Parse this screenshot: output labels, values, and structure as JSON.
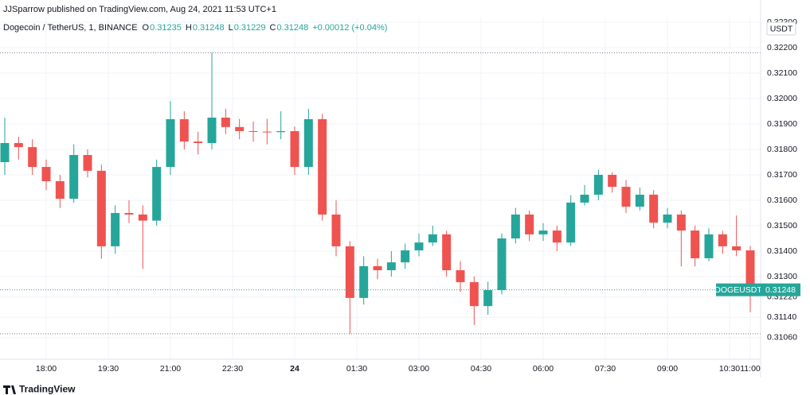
{
  "header": {
    "published": "JJSparrow published on TradingView.com, Aug 24, 2021 11:53 UTC+1"
  },
  "legend": {
    "symbol": "Dogecoin / TetherUS, 1, BINANCE",
    "o_label": "O",
    "o": "0.31235",
    "h_label": "H",
    "h": "0.31248",
    "l_label": "L",
    "l": "0.31229",
    "c_label": "C",
    "c": "0.31248",
    "change": "+0.00012 (+0.04%)"
  },
  "price_tag": {
    "symbol": "DOGEUSDT",
    "value": "0.31248"
  },
  "currency": "USDT",
  "footer": {
    "brand": "TradingView"
  },
  "chart_data": {
    "type": "candlestick",
    "up_color": "#26a69a",
    "down_color": "#ef5350",
    "grid": true,
    "x": [
      "17:00",
      "17:20",
      "17:40",
      "18:00",
      "18:20",
      "18:40",
      "19:00",
      "19:20",
      "19:40",
      "20:00",
      "20:20",
      "20:40",
      "21:00",
      "21:20",
      "21:40",
      "22:00",
      "22:20",
      "22:40",
      "23:00",
      "23:20",
      "23:40",
      "00:00",
      "00:20",
      "00:40",
      "01:00",
      "01:20",
      "01:40",
      "02:00",
      "02:20",
      "02:40",
      "03:00",
      "03:20",
      "03:40",
      "04:00",
      "04:20",
      "04:40",
      "05:00",
      "05:20",
      "05:40",
      "06:00",
      "06:20",
      "06:40",
      "07:00",
      "07:20",
      "07:40",
      "08:00",
      "08:20",
      "08:40",
      "09:00",
      "09:20",
      "09:40",
      "10:00",
      "10:20",
      "10:40",
      "11:00"
    ],
    "open": [
      0.3175,
      0.31825,
      0.31809,
      0.31731,
      0.31675,
      0.31606,
      0.31778,
      0.31716,
      0.31419,
      0.3155,
      0.31544,
      0.3152,
      0.31731,
      0.31919,
      0.31831,
      0.31825,
      0.31925,
      0.31888,
      0.31872,
      0.3187,
      0.31868,
      0.31872,
      0.31731,
      0.31919,
      0.31544,
      0.31419,
      0.31216,
      0.31341,
      0.31325,
      0.31356,
      0.31403,
      0.31434,
      0.31466,
      0.31325,
      0.31278,
      0.31184,
      0.31247,
      0.3145,
      0.31544,
      0.31466,
      0.31481,
      0.31434,
      0.31591,
      0.31622,
      0.317,
      0.31653,
      0.31575,
      0.31622,
      0.31512,
      0.31544,
      0.31481,
      0.31372,
      0.31466,
      0.31419,
      0.31403
    ],
    "high": [
      0.31925,
      0.3185,
      0.3184,
      0.3176,
      0.317,
      0.3182,
      0.318,
      0.3174,
      0.3158,
      0.316,
      0.3158,
      0.3176,
      0.3199,
      0.3195,
      0.3187,
      0.3218,
      0.3196,
      0.3192,
      0.3191,
      0.3192,
      0.3195,
      0.3189,
      0.3196,
      0.3194,
      0.316,
      0.3144,
      0.3138,
      0.3137,
      0.314,
      0.3143,
      0.3147,
      0.315,
      0.3148,
      0.3136,
      0.313,
      0.3128,
      0.3147,
      0.3157,
      0.3156,
      0.3151,
      0.315,
      0.3162,
      0.3166,
      0.3172,
      0.3171,
      0.3168,
      0.3165,
      0.3164,
      0.3157,
      0.3156,
      0.315,
      0.3149,
      0.3148,
      0.3154,
      0.3142
    ],
    "low": [
      0.317,
      0.3176,
      0.317,
      0.3164,
      0.3157,
      0.3159,
      0.3169,
      0.3137,
      0.3139,
      0.3151,
      0.3133,
      0.315,
      0.317,
      0.318,
      0.3178,
      0.318,
      0.3186,
      0.3184,
      0.3183,
      0.3182,
      0.3184,
      0.317,
      0.317,
      0.3152,
      0.3138,
      0.31075,
      0.3119,
      0.3129,
      0.313,
      0.3133,
      0.3138,
      0.3142,
      0.313,
      0.3124,
      0.3111,
      0.3115,
      0.3123,
      0.3143,
      0.3144,
      0.3144,
      0.314,
      0.3142,
      0.3158,
      0.316,
      0.3163,
      0.3155,
      0.3156,
      0.3149,
      0.3149,
      0.3134,
      0.3134,
      0.3136,
      0.3139,
      0.3138,
      0.3116
    ],
    "close": [
      0.31825,
      0.31809,
      0.31731,
      0.31675,
      0.31606,
      0.31778,
      0.31716,
      0.31419,
      0.3155,
      0.31544,
      0.3152,
      0.31731,
      0.31919,
      0.31831,
      0.31825,
      0.31925,
      0.31888,
      0.31872,
      0.3187,
      0.31868,
      0.31872,
      0.31731,
      0.31919,
      0.31544,
      0.31419,
      0.31216,
      0.31341,
      0.31325,
      0.31356,
      0.31403,
      0.31434,
      0.31466,
      0.31325,
      0.31278,
      0.31184,
      0.31247,
      0.3145,
      0.31544,
      0.31466,
      0.31481,
      0.31434,
      0.31591,
      0.31622,
      0.317,
      0.31653,
      0.31575,
      0.31622,
      0.31512,
      0.31544,
      0.31481,
      0.31372,
      0.31466,
      0.31419,
      0.31403,
      0.31248
    ],
    "ylim": [
      0.30975,
      0.323875
    ],
    "yticks": [
      {
        "value": 0.323,
        "label": "0.32300"
      },
      {
        "value": 0.322,
        "label": "0.32200"
      },
      {
        "value": 0.321,
        "label": "0.32100"
      },
      {
        "value": 0.32,
        "label": "0.32000"
      },
      {
        "value": 0.319,
        "label": "0.31900"
      },
      {
        "value": 0.318,
        "label": "0.31800"
      },
      {
        "value": 0.317,
        "label": "0.31700"
      },
      {
        "value": 0.316,
        "label": "0.31600"
      },
      {
        "value": 0.315,
        "label": "0.31500"
      },
      {
        "value": 0.314,
        "label": "0.31400"
      },
      {
        "value": 0.313,
        "label": "0.31300"
      },
      {
        "value": 0.3122,
        "label": "0.31220"
      },
      {
        "value": 0.3114,
        "label": "0.31140"
      },
      {
        "value": 0.3106,
        "label": "0.31060"
      }
    ],
    "xticks": [
      {
        "value": "18:00",
        "label": "18:00"
      },
      {
        "value": "19:30",
        "label": "19:30"
      },
      {
        "value": "21:00",
        "label": "21:00"
      },
      {
        "value": "22:30",
        "label": "22:30"
      },
      {
        "value": "00:00",
        "label": "24"
      },
      {
        "value": "01:30",
        "label": "01:30"
      },
      {
        "value": "03:00",
        "label": "03:00"
      },
      {
        "value": "04:30",
        "label": "04:30"
      },
      {
        "value": "06:00",
        "label": "06:00"
      },
      {
        "value": "07:30",
        "label": "07:30"
      },
      {
        "value": "09:00",
        "label": "09:00"
      },
      {
        "value": "10:30",
        "label": "10:30"
      },
      {
        "value": "11:00",
        "label": "11:00"
      }
    ]
  }
}
